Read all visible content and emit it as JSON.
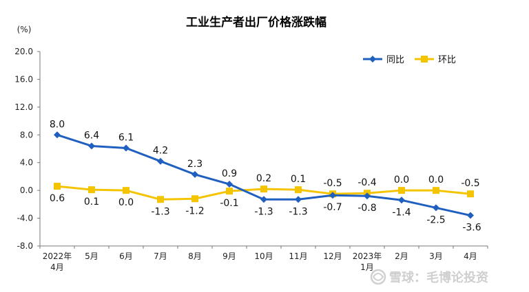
{
  "chart_data": {
    "type": "line",
    "title": "工业生产者出厂价格涨跌幅",
    "ylabel": "(%)",
    "ylim": [
      -8.0,
      20.0
    ],
    "yticks": [
      "20.0",
      "16.0",
      "12.0",
      "8.0",
      "4.0",
      "0.0",
      "-4.0",
      "-8.0"
    ],
    "ytick_values": [
      20,
      16,
      12,
      8,
      4,
      0,
      -4,
      -8
    ],
    "categories": [
      [
        "2022年",
        "4月"
      ],
      [
        "5月"
      ],
      [
        "6月"
      ],
      [
        "7月"
      ],
      [
        "8月"
      ],
      [
        "9月"
      ],
      [
        "10月"
      ],
      [
        "11月"
      ],
      [
        "12月"
      ],
      [
        "2023年",
        "1月"
      ],
      [
        "2月"
      ],
      [
        "3月"
      ],
      [
        "4月"
      ]
    ],
    "series": [
      {
        "name": "同比",
        "color": "#1f5fbf",
        "marker": "diamond",
        "values": [
          8.0,
          6.4,
          6.1,
          4.2,
          2.3,
          0.9,
          -1.3,
          -1.3,
          -0.7,
          -0.8,
          -1.4,
          -2.5,
          -3.6
        ],
        "labels": [
          "8.0",
          "6.4",
          "6.1",
          "4.2",
          "2.3",
          "0.9",
          "-1.3",
          "-1.3",
          "-0.7",
          "-0.8",
          "-1.4",
          "-2.5",
          "-3.6"
        ]
      },
      {
        "name": "环比",
        "color": "#f5c400",
        "marker": "square",
        "values": [
          0.6,
          0.1,
          0.0,
          -1.3,
          -1.2,
          -0.1,
          0.2,
          0.1,
          -0.5,
          -0.4,
          0.0,
          0.0,
          -0.5
        ],
        "labels": [
          "0.6",
          "0.1",
          "0.0",
          "-1.3",
          "-1.2",
          "-0.1",
          "0.2",
          "0.1",
          "-0.5",
          "-0.4",
          "0.0",
          "0.0",
          "-0.5"
        ]
      }
    ],
    "grid": false,
    "legend": "top-right"
  },
  "watermark": {
    "text": "雪球：毛博论投资",
    "icon": "snowball-logo-icon"
  }
}
